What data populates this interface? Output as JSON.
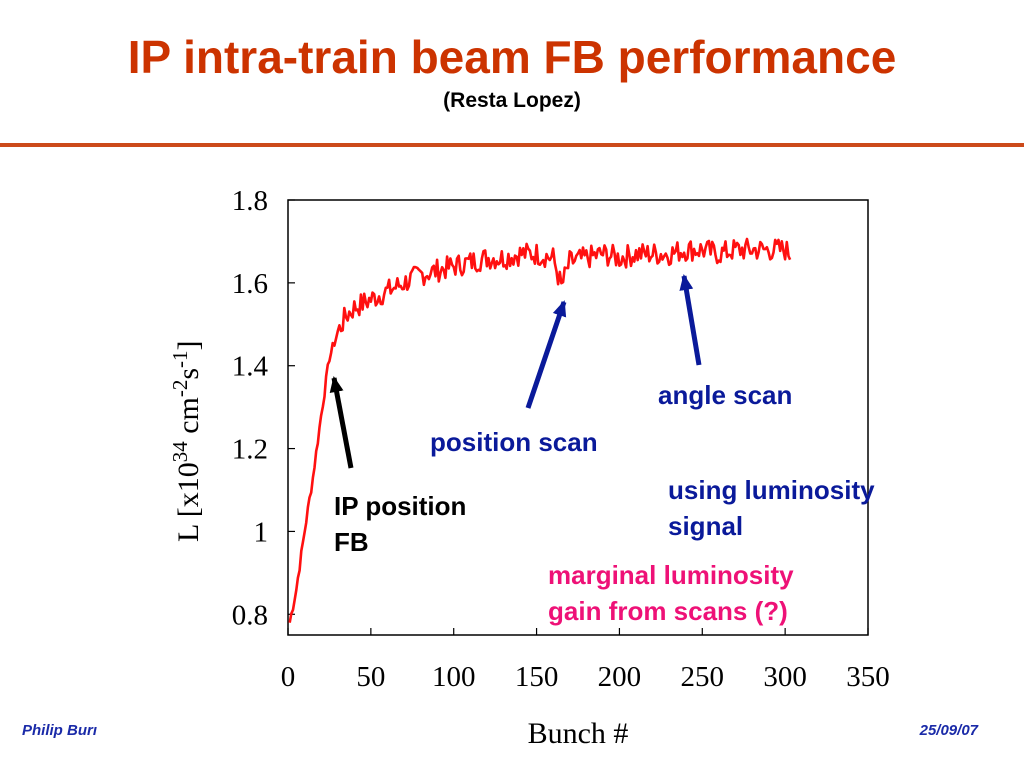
{
  "slide": {
    "title": "IP intra-train beam FB performance",
    "subtitle": "(Resta Lopez)",
    "footer_left": "Philip Burı",
    "footer_right": "25/09/07"
  },
  "annotations": {
    "ip_position": [
      "IP position",
      "FB"
    ],
    "position_scan": "position scan",
    "angle_scan": "angle scan",
    "lumi_signal": [
      "using luminosity",
      "signal"
    ],
    "marginal": [
      "marginal luminosity",
      "gain from scans (?)"
    ]
  },
  "colors": {
    "title": "#cc3300",
    "series": "#ff0000",
    "annotation_blue": "#0a1a9a",
    "annotation_pink": "#ee1177"
  },
  "chart_data": {
    "type": "line",
    "xlabel": "Bunch #",
    "ylabel": "L [x10^34 cm^-2 s^-1]",
    "xlim": [
      0,
      350
    ],
    "ylim": [
      0.75,
      1.8
    ],
    "xticks": [
      "0",
      "50",
      "100",
      "150",
      "200",
      "250",
      "300",
      "350"
    ],
    "yticks": [
      "0.8",
      "1",
      "1.2",
      "1.4",
      "1.6",
      "1.8"
    ],
    "series": [
      {
        "x": [
          1,
          5,
          10,
          15,
          20,
          25,
          30,
          35,
          40,
          50,
          60,
          70,
          80,
          90,
          100,
          110,
          120,
          130,
          140,
          150,
          160,
          165,
          170,
          180,
          190,
          200,
          210,
          220,
          230,
          240,
          250,
          260,
          270,
          280,
          290,
          300,
          303
        ],
        "y": [
          0.78,
          0.86,
          1.0,
          1.13,
          1.28,
          1.42,
          1.48,
          1.52,
          1.54,
          1.56,
          1.58,
          1.6,
          1.62,
          1.63,
          1.64,
          1.65,
          1.66,
          1.66,
          1.67,
          1.67,
          1.66,
          1.59,
          1.65,
          1.66,
          1.67,
          1.66,
          1.67,
          1.67,
          1.67,
          1.68,
          1.68,
          1.67,
          1.68,
          1.68,
          1.68,
          1.68,
          1.67
        ]
      }
    ]
  }
}
